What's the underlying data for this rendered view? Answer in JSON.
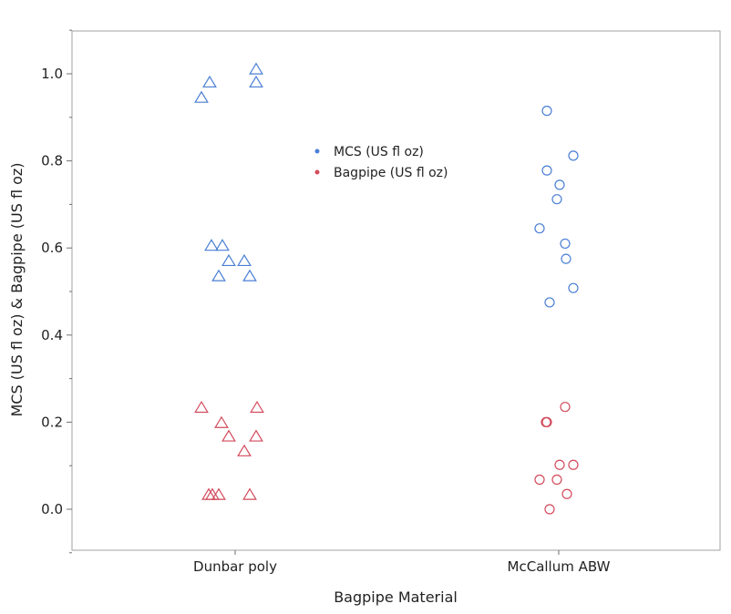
{
  "chart_data": {
    "type": "scatter",
    "title": "",
    "xlabel": "Bagpipe Material",
    "ylabel": "MCS (US fl oz) & Bagpipe (US fl oz)",
    "categories": [
      "Dunbar poly",
      "McCallum ABW"
    ],
    "ylim": [
      -0.1,
      1.1
    ],
    "yticks": [
      "0.0",
      "0.2",
      "0.4",
      "0.6",
      "0.8",
      "1.0"
    ],
    "grid": false,
    "legend_position": "top-center",
    "series": [
      {
        "name": "MCS (US fl oz)",
        "color": "#4a7fd4",
        "points": [
          {
            "category": "Dunbar poly",
            "y": 0.945,
            "marker": "triangle"
          },
          {
            "category": "Dunbar poly",
            "y": 0.98,
            "marker": "triangle"
          },
          {
            "category": "Dunbar poly",
            "y": 1.01,
            "marker": "triangle"
          },
          {
            "category": "Dunbar poly",
            "y": 0.98,
            "marker": "triangle"
          },
          {
            "category": "Dunbar poly",
            "y": 0.605,
            "marker": "triangle"
          },
          {
            "category": "Dunbar poly",
            "y": 0.605,
            "marker": "triangle"
          },
          {
            "category": "Dunbar poly",
            "y": 0.57,
            "marker": "triangle"
          },
          {
            "category": "Dunbar poly",
            "y": 0.57,
            "marker": "triangle"
          },
          {
            "category": "Dunbar poly",
            "y": 0.535,
            "marker": "triangle"
          },
          {
            "category": "Dunbar poly",
            "y": 0.535,
            "marker": "triangle"
          },
          {
            "category": "McCallum ABW",
            "y": 0.915,
            "marker": "circle"
          },
          {
            "category": "McCallum ABW",
            "y": 0.812,
            "marker": "circle"
          },
          {
            "category": "McCallum ABW",
            "y": 0.778,
            "marker": "circle"
          },
          {
            "category": "McCallum ABW",
            "y": 0.745,
            "marker": "circle"
          },
          {
            "category": "McCallum ABW",
            "y": 0.712,
            "marker": "circle"
          },
          {
            "category": "McCallum ABW",
            "y": 0.645,
            "marker": "circle"
          },
          {
            "category": "McCallum ABW",
            "y": 0.61,
            "marker": "circle"
          },
          {
            "category": "McCallum ABW",
            "y": 0.575,
            "marker": "circle"
          },
          {
            "category": "McCallum ABW",
            "y": 0.508,
            "marker": "circle"
          },
          {
            "category": "McCallum ABW",
            "y": 0.475,
            "marker": "circle"
          }
        ]
      },
      {
        "name": "Bagpipe (US fl oz)",
        "color": "#d24a5c",
        "points": [
          {
            "category": "Dunbar poly",
            "y": 0.233,
            "marker": "triangle"
          },
          {
            "category": "Dunbar poly",
            "y": 0.233,
            "marker": "triangle"
          },
          {
            "category": "Dunbar poly",
            "y": 0.198,
            "marker": "triangle"
          },
          {
            "category": "Dunbar poly",
            "y": 0.167,
            "marker": "triangle"
          },
          {
            "category": "Dunbar poly",
            "y": 0.167,
            "marker": "triangle"
          },
          {
            "category": "Dunbar poly",
            "y": 0.133,
            "marker": "triangle"
          },
          {
            "category": "Dunbar poly",
            "y": 0.033,
            "marker": "triangle"
          },
          {
            "category": "Dunbar poly",
            "y": 0.033,
            "marker": "triangle"
          },
          {
            "category": "Dunbar poly",
            "y": 0.033,
            "marker": "triangle"
          },
          {
            "category": "Dunbar poly",
            "y": 0.033,
            "marker": "triangle"
          },
          {
            "category": "McCallum ABW",
            "y": 0.235,
            "marker": "circle"
          },
          {
            "category": "McCallum ABW",
            "y": 0.2,
            "marker": "circle"
          },
          {
            "category": "McCallum ABW",
            "y": 0.2,
            "marker": "circle"
          },
          {
            "category": "McCallum ABW",
            "y": 0.102,
            "marker": "circle"
          },
          {
            "category": "McCallum ABW",
            "y": 0.102,
            "marker": "circle"
          },
          {
            "category": "McCallum ABW",
            "y": 0.068,
            "marker": "circle"
          },
          {
            "category": "McCallum ABW",
            "y": 0.068,
            "marker": "circle"
          },
          {
            "category": "McCallum ABW",
            "y": 0.035,
            "marker": "circle"
          },
          {
            "category": "McCallum ABW",
            "y": 0.0,
            "marker": "circle"
          }
        ]
      }
    ]
  }
}
